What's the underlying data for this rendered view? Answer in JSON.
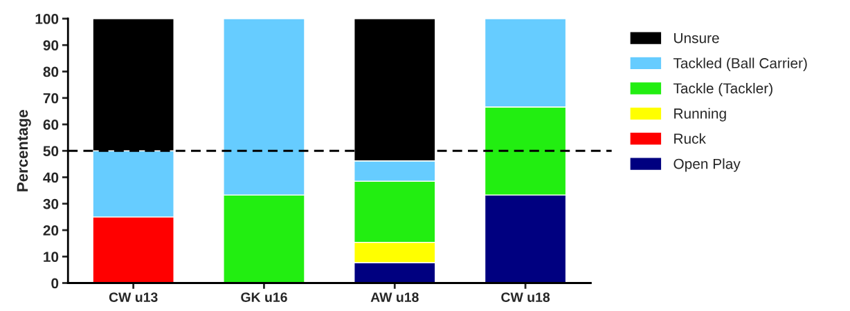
{
  "chart_data": {
    "type": "bar",
    "stacked": true,
    "ylabel": "Percentage",
    "categories": [
      "CW u13",
      "GK u16",
      "AW u18",
      "CW u18"
    ],
    "series": [
      {
        "name": "Open Play",
        "color": "#000080",
        "values": [
          null,
          null,
          7.7,
          33.3
        ]
      },
      {
        "name": "Ruck",
        "color": "#ff0000",
        "values": [
          25,
          null,
          null,
          null
        ]
      },
      {
        "name": "Running",
        "color": "#ffff00",
        "values": [
          null,
          null,
          7.7,
          null
        ]
      },
      {
        "name": "Tackle (Tackler)",
        "color": "#22ee11",
        "values": [
          null,
          33.3,
          23.1,
          33.3
        ]
      },
      {
        "name": "Tackled (Ball Carrier)",
        "color": "#66ccff",
        "values": [
          25,
          66.7,
          7.7,
          33.4
        ]
      },
      {
        "name": "Unsure",
        "color": "#000000",
        "values": [
          50,
          null,
          53.8,
          null
        ]
      }
    ],
    "ylim": [
      0,
      100
    ],
    "yticks": [
      0,
      10,
      20,
      30,
      40,
      50,
      60,
      70,
      80,
      90,
      100
    ],
    "ref_lines": [
      {
        "axis": "y",
        "value": 50,
        "color": "#000000",
        "line_style": "dashed"
      }
    ],
    "grid": false,
    "legend": "right"
  }
}
